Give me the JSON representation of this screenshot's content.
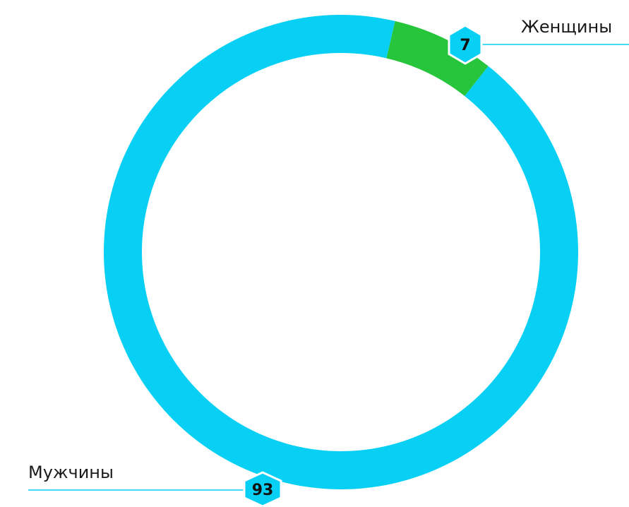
{
  "chart_data": {
    "type": "pie",
    "variant": "donut",
    "slices": [
      {
        "label": "Мужчины",
        "value": 93,
        "color": "#08D0F5"
      },
      {
        "label": "Женщины",
        "value": 7,
        "color": "#26C53C"
      }
    ],
    "title": "",
    "legend": "none"
  },
  "colors": {
    "leader_line": "#08D0F5",
    "badge_fill": "#08D0F5",
    "badge_stroke": "#ffffff"
  }
}
